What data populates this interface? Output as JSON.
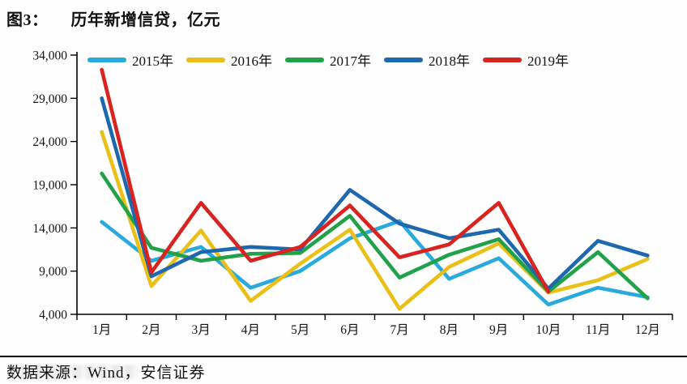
{
  "header": {
    "figure_label": "图3：",
    "title": "历年新增信贷，亿元"
  },
  "footer": {
    "source": "数据来源：Wind，安信证券"
  },
  "chart_data": {
    "type": "line",
    "title": "历年新增信贷，亿元",
    "unit": "亿元",
    "legend_position": "top",
    "grid": false,
    "categories": [
      "1月",
      "2月",
      "3月",
      "4月",
      "5月",
      "6月",
      "7月",
      "8月",
      "9月",
      "10月",
      "11月",
      "12月"
    ],
    "ylim": [
      4000,
      34000
    ],
    "ytick_step": 5000,
    "ytick_labels": [
      "4,000",
      "9,000",
      "14,000",
      "19,000",
      "24,000",
      "29,000",
      "34,000"
    ],
    "series": [
      {
        "name": "2015年",
        "color": "#29A9DC",
        "values": [
          14700,
          10200,
          11800,
          7079,
          9008,
          12791,
          14800,
          8096,
          10500,
          5136,
          7089,
          5978
        ]
      },
      {
        "name": "2016年",
        "color": "#EAC018",
        "values": [
          25100,
          7266,
          13700,
          5556,
          9855,
          13800,
          4636,
          9487,
          12200,
          6513,
          7946,
          10400
        ]
      },
      {
        "name": "2017年",
        "color": "#21A24A",
        "values": [
          20300,
          11700,
          10200,
          11000,
          11100,
          15400,
          8255,
          10900,
          12700,
          6632,
          11200,
          5844
        ]
      },
      {
        "name": "2018年",
        "color": "#1E68B0",
        "values": [
          29000,
          8393,
          11200,
          11800,
          11500,
          18400,
          14500,
          12800,
          13800,
          6970,
          12500,
          10800
        ]
      },
      {
        "name": "2019年",
        "color": "#D8231F",
        "values": [
          32300,
          8858,
          16900,
          10200,
          11800,
          16600,
          10600,
          12100,
          16900,
          6613,
          null,
          null
        ]
      }
    ]
  }
}
